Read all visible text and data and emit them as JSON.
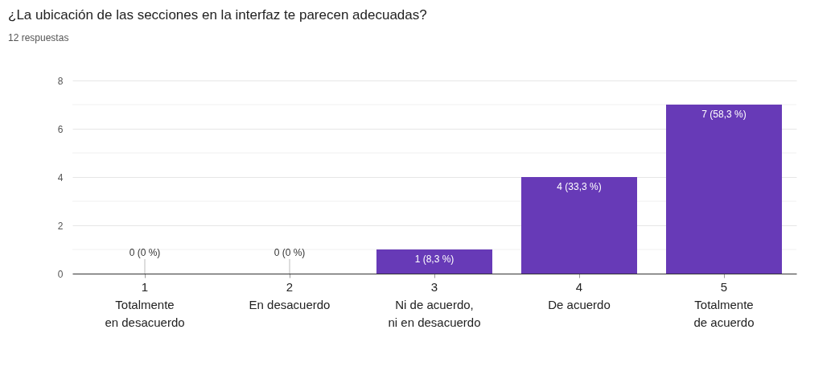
{
  "chart_data": {
    "type": "bar",
    "title": "¿La ubicación de las secciones en la interfaz te parecen adecuadas?",
    "subtitle": "12 respuestas",
    "categories": [
      "1\nTotalmente\nen desacuerdo",
      "2\nEn desacuerdo",
      "3\nNi de acuerdo,\nni en desacuerdo",
      "4\nDe acuerdo",
      "5\nTotalmente\nde acuerdo"
    ],
    "values": [
      0,
      0,
      1,
      4,
      7
    ],
    "color": "#673ab7",
    "value_labels": [
      "0 (0 %)",
      "0 (0 %)",
      "1 (8,3 %)",
      "4 (33,3 %)",
      "7 (58,3 %)"
    ],
    "ylim": [
      0,
      8
    ],
    "yticks": [
      0,
      {
        "value": 1,
        "label": null
      },
      2,
      {
        "value": 3,
        "label": null
      },
      4,
      {
        "value": 5,
        "label": null
      },
      6,
      {
        "value": 7,
        "label": null
      },
      8
    ],
    "grid": "y"
  }
}
